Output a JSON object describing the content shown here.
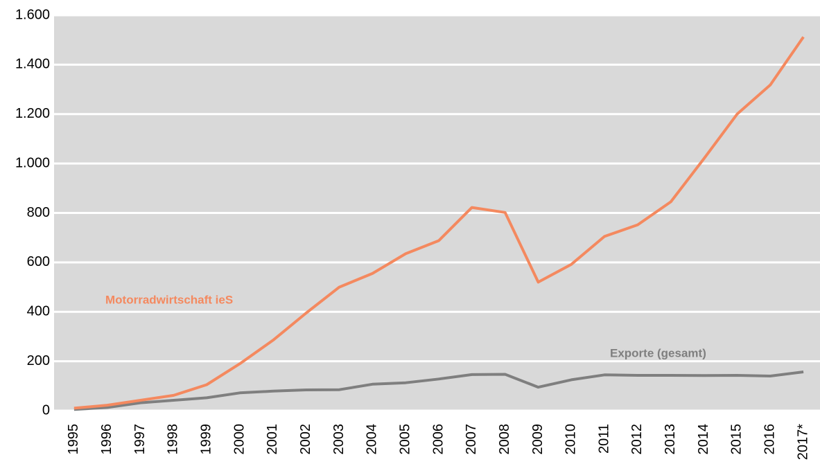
{
  "chart_data": {
    "type": "line",
    "categories": [
      "1995",
      "1996",
      "1997",
      "1998",
      "1999",
      "2000",
      "2001",
      "2002",
      "2003",
      "2004",
      "2005",
      "2006",
      "2007",
      "2008",
      "2009",
      "2010",
      "2011",
      "2012",
      "2013",
      "2014",
      "2015",
      "2016",
      "2017*"
    ],
    "series": [
      {
        "name": "Motorradwirtschaft ieS",
        "color": "#f4895f",
        "values": [
          10,
          22,
          42,
          62,
          105,
          190,
          285,
          395,
          500,
          555,
          635,
          688,
          822,
          802,
          520,
          592,
          705,
          752,
          845,
          1020,
          1200,
          1318,
          1512
        ]
      },
      {
        "name": "Exporte (gesamt)",
        "color": "#7f7f7f",
        "values": [
          5,
          13,
          32,
          42,
          52,
          72,
          79,
          84,
          85,
          107,
          113,
          128,
          146,
          147,
          95,
          125,
          145,
          143,
          143,
          142,
          143,
          140,
          157
        ]
      }
    ],
    "ylim": [
      0,
      1600
    ],
    "yticks": [
      0,
      200,
      400,
      600,
      800,
      {
        "value": 1000,
        "label": "1.000"
      },
      {
        "value": 1200,
        "label": "1.200"
      },
      {
        "value": 1400,
        "label": "1.400"
      },
      {
        "value": 1600,
        "label": "1.600"
      }
    ],
    "grid": true,
    "background": "#d9d9d9",
    "legend": "inline"
  }
}
